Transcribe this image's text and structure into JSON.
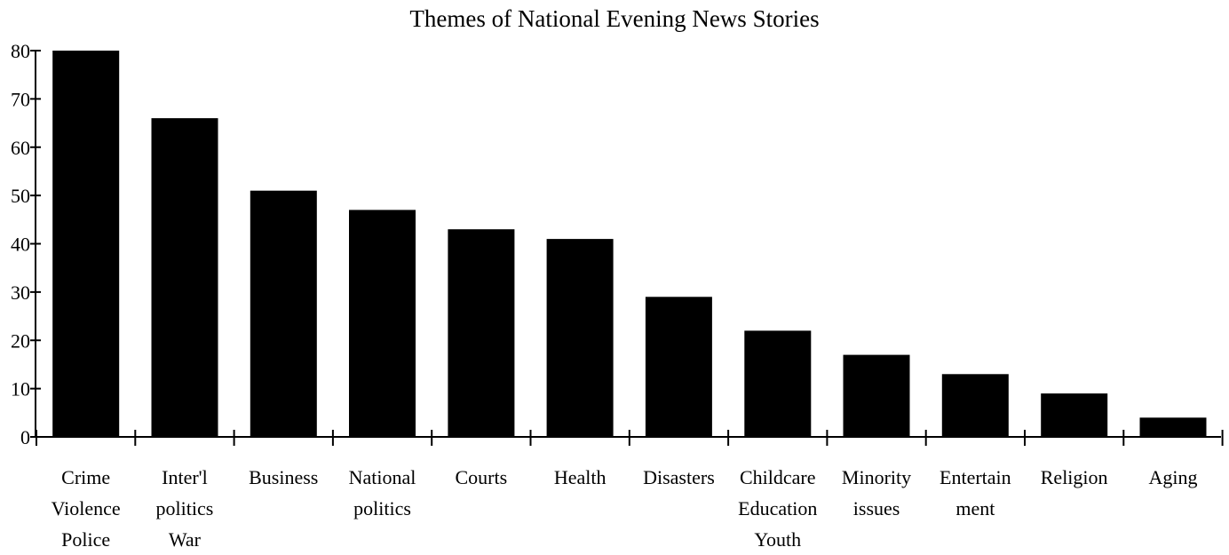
{
  "chart_data": {
    "type": "bar",
    "title": "Themes of National Evening News Stories",
    "xlabel": "",
    "ylabel": "",
    "ylim": [
      0,
      80
    ],
    "yticks": [
      0,
      10,
      20,
      30,
      40,
      50,
      60,
      70,
      80
    ],
    "grid": false,
    "categories": [
      "Crime\nViolence\nPolice",
      "Inter'l\npolitics\nWar",
      "Business",
      "National\npolitics",
      "Courts",
      "Health",
      "Disasters",
      "Childcare\nEducation\nYouth",
      "Minority\nissues",
      "Entertain\nment",
      "Religion",
      "Aging"
    ],
    "values": [
      80,
      66,
      51,
      47,
      43,
      41,
      29,
      22,
      17,
      13,
      9,
      4
    ],
    "bar_color": "#000000"
  }
}
